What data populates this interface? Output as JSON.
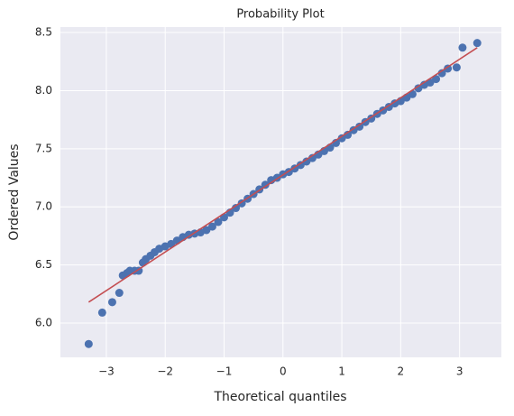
{
  "chart_data": {
    "type": "scatter",
    "title": "Probability Plot",
    "x_label": "Theoretical quantiles",
    "y_label": "Ordered Values",
    "grid": true,
    "background": "#eaeaf2",
    "xlim": [
      -3.78,
      3.71
    ],
    "ylim": [
      5.705,
      8.547
    ],
    "xticks": [
      {
        "value": -3,
        "label": "−3"
      },
      {
        "value": -2,
        "label": "−2"
      },
      {
        "value": -1,
        "label": "−1"
      },
      0,
      1,
      2,
      3
    ],
    "yticks": [
      {
        "value": 6,
        "label": "6.0"
      },
      6.5,
      {
        "value": 7,
        "label": "7.0"
      },
      7.5,
      {
        "value": 8,
        "label": "8.0"
      },
      8.5
    ],
    "series": [
      {
        "mode": "markers",
        "color": "#4c72b0",
        "x": [
          -3.3,
          -3.07,
          -2.9,
          -2.78,
          -2.72,
          -2.65,
          -2.6,
          -2.52,
          -2.45,
          -2.38,
          -2.33,
          -2.25,
          -2.18,
          -2.1,
          -2.0,
          -1.9,
          -1.8,
          -1.7,
          -1.6,
          -1.5,
          -1.4,
          -1.3,
          -1.2,
          -1.1,
          -1.0,
          -0.9,
          -0.8,
          -0.7,
          -0.6,
          -0.5,
          -0.4,
          -0.3,
          -0.2,
          -0.1,
          0.0,
          0.1,
          0.2,
          0.3,
          0.4,
          0.5,
          0.6,
          0.7,
          0.8,
          0.9,
          1.0,
          1.1,
          1.2,
          1.3,
          1.4,
          1.5,
          1.6,
          1.7,
          1.8,
          1.9,
          2.0,
          2.1,
          2.2,
          2.3,
          2.4,
          2.5,
          2.6,
          2.7,
          2.8,
          2.95,
          3.05,
          3.3
        ],
        "values": [
          5.82,
          6.09,
          6.18,
          6.26,
          6.41,
          6.43,
          6.45,
          6.45,
          6.45,
          6.52,
          6.55,
          6.58,
          6.61,
          6.64,
          6.66,
          6.68,
          6.71,
          6.74,
          6.76,
          6.77,
          6.78,
          6.8,
          6.83,
          6.87,
          6.91,
          6.95,
          6.99,
          7.03,
          7.07,
          7.11,
          7.15,
          7.19,
          7.23,
          7.25,
          7.28,
          7.3,
          7.33,
          7.36,
          7.39,
          7.42,
          7.45,
          7.48,
          7.51,
          7.55,
          7.59,
          7.62,
          7.66,
          7.69,
          7.73,
          7.76,
          7.8,
          7.83,
          7.86,
          7.89,
          7.91,
          7.94,
          7.97,
          8.02,
          8.05,
          8.07,
          8.1,
          8.15,
          8.19,
          8.2,
          8.37,
          8.41
        ]
      },
      {
        "mode": "line",
        "color": "#c44e52",
        "x": [
          -3.3,
          3.3
        ],
        "values": [
          6.18,
          8.37
        ]
      }
    ]
  }
}
